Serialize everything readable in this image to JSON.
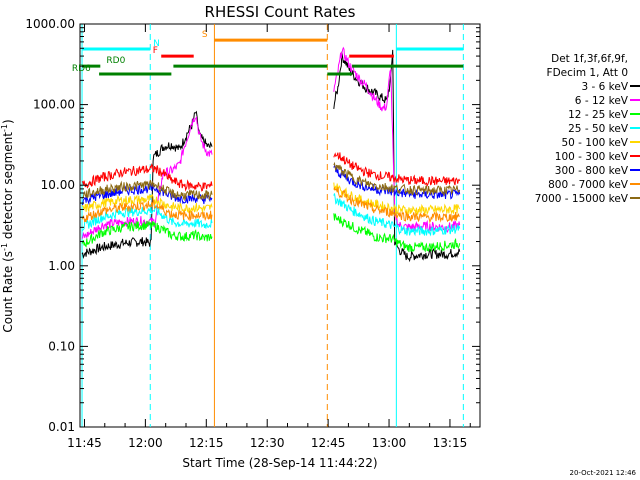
{
  "chart_data": {
    "type": "line",
    "title": "RHESSI Count Rates",
    "xlabel": "Start Time (28-Sep-14 11:44:22)",
    "ylabel": "Count Rate (s",
    "ylabel_sup": "-1",
    "ylabel_tail": " detector segment",
    "ylabel_sup2": "-1",
    "ylabel_close": ")",
    "yscale": "log",
    "xlim_min": [
      -0.5,
      98
    ],
    "ylim": [
      0.01,
      1000
    ],
    "x_ticks": [
      {
        "min": 0.6,
        "label": "11:45"
      },
      {
        "min": 15.6,
        "label": "12:00"
      },
      {
        "min": 30.6,
        "label": "12:15"
      },
      {
        "min": 45.6,
        "label": "12:30"
      },
      {
        "min": 60.6,
        "label": "12:45"
      },
      {
        "min": 75.6,
        "label": "13:00"
      },
      {
        "min": 90.6,
        "label": "13:15"
      }
    ],
    "y_ticks": [
      {
        "value": 0.01,
        "label": "0.01"
      },
      {
        "value": 0.1,
        "label": "0.10"
      },
      {
        "value": 1,
        "label": "1.00"
      },
      {
        "value": 10,
        "label": "10.00"
      },
      {
        "value": 100,
        "label": "100.00"
      },
      {
        "value": 1000,
        "label": "1000.00"
      }
    ],
    "legend_title": [
      "Det 1f,3f,6f,9f,",
      "FDecim 1, Att 0"
    ],
    "legend_position": "right",
    "series": [
      {
        "name": "3 - 6 keV",
        "color": "#000000",
        "seg1": [
          [
            0,
            1.4
          ],
          [
            5,
            1.7
          ],
          [
            10,
            1.9
          ],
          [
            15,
            2.0
          ],
          [
            17,
            1.9
          ],
          [
            17.5,
            22
          ],
          [
            20,
            30
          ],
          [
            22,
            32
          ],
          [
            24,
            28
          ],
          [
            26,
            45
          ],
          [
            27,
            55
          ],
          [
            28,
            80
          ],
          [
            29,
            40
          ],
          [
            30,
            35
          ],
          [
            31,
            30
          ],
          [
            32,
            30
          ]
        ],
        "seg2": [
          [
            62,
            100
          ],
          [
            63,
            160
          ],
          [
            64,
            400
          ],
          [
            65,
            330
          ],
          [
            66,
            260
          ],
          [
            68,
            200
          ],
          [
            70,
            160
          ],
          [
            72,
            140
          ],
          [
            74,
            120
          ],
          [
            75,
            110
          ],
          [
            76,
            200
          ],
          [
            76.5,
            500
          ],
          [
            77,
            2.0
          ],
          [
            78,
            1.6
          ],
          [
            80,
            1.3
          ],
          [
            85,
            1.4
          ],
          [
            90,
            1.4
          ],
          [
            93,
            1.5
          ]
        ]
      },
      {
        "name": "6 - 12 keV",
        "color": "#ff00ff",
        "seg1": [
          [
            0,
            2.2
          ],
          [
            5,
            3.2
          ],
          [
            10,
            3.5
          ],
          [
            15,
            3.6
          ],
          [
            18,
            3.5
          ],
          [
            19,
            8
          ],
          [
            20,
            14
          ],
          [
            22,
            15
          ],
          [
            24,
            18
          ],
          [
            25,
            28
          ],
          [
            26,
            40
          ],
          [
            27,
            60
          ],
          [
            28,
            75
          ],
          [
            29,
            40
          ],
          [
            30,
            30
          ],
          [
            31,
            25
          ],
          [
            32,
            24
          ]
        ],
        "seg2": [
          [
            62,
            150
          ],
          [
            63,
            250
          ],
          [
            64,
            480
          ],
          [
            65,
            380
          ],
          [
            66,
            300
          ],
          [
            68,
            220
          ],
          [
            70,
            170
          ],
          [
            72,
            120
          ],
          [
            74,
            90
          ],
          [
            75,
            95
          ],
          [
            76,
            300
          ],
          [
            77,
            4.5
          ],
          [
            78,
            3.2
          ],
          [
            80,
            3.0
          ],
          [
            85,
            3.1
          ],
          [
            90,
            3.0
          ],
          [
            93,
            3.2
          ]
        ]
      },
      {
        "name": "12 - 25 keV",
        "color": "#00ff00",
        "seg1": [
          [
            0,
            1.8
          ],
          [
            5,
            2.6
          ],
          [
            10,
            3.0
          ],
          [
            15,
            3.2
          ],
          [
            18,
            3.1
          ],
          [
            20,
            2.8
          ],
          [
            22,
            2.4
          ],
          [
            25,
            2.3
          ],
          [
            28,
            2.4
          ],
          [
            30,
            2.2
          ],
          [
            32,
            2.3
          ]
        ],
        "seg2": [
          [
            62,
            4.0
          ],
          [
            64,
            3.6
          ],
          [
            66,
            3.2
          ],
          [
            68,
            2.8
          ],
          [
            70,
            2.6
          ],
          [
            72,
            2.3
          ],
          [
            74,
            2.2
          ],
          [
            76,
            2.2
          ],
          [
            78,
            1.9
          ],
          [
            80,
            1.7
          ],
          [
            85,
            1.7
          ],
          [
            90,
            1.8
          ],
          [
            93,
            1.9
          ]
        ]
      },
      {
        "name": "25 - 50 keV",
        "color": "#00ffff",
        "seg1": [
          [
            0,
            3.0
          ],
          [
            5,
            4.0
          ],
          [
            10,
            4.6
          ],
          [
            15,
            4.8
          ],
          [
            18,
            4.9
          ],
          [
            20,
            4.2
          ],
          [
            22,
            3.5
          ],
          [
            25,
            3.3
          ],
          [
            28,
            3.4
          ],
          [
            30,
            3.2
          ],
          [
            32,
            3.4
          ]
        ],
        "seg2": [
          [
            62,
            7.0
          ],
          [
            64,
            6.0
          ],
          [
            66,
            5.0
          ],
          [
            68,
            4.5
          ],
          [
            70,
            4.0
          ],
          [
            72,
            3.6
          ],
          [
            74,
            3.4
          ],
          [
            76,
            3.2
          ],
          [
            78,
            2.9
          ],
          [
            80,
            2.7
          ],
          [
            85,
            2.7
          ],
          [
            90,
            2.8
          ],
          [
            93,
            2.9
          ]
        ]
      },
      {
        "name": "50 - 100 keV",
        "color": "#ffd700",
        "seg1": [
          [
            0,
            5.0
          ],
          [
            5,
            6.0
          ],
          [
            10,
            6.5
          ],
          [
            15,
            6.6
          ],
          [
            18,
            6.7
          ],
          [
            20,
            6.0
          ],
          [
            22,
            5.4
          ],
          [
            25,
            5.2
          ],
          [
            28,
            5.3
          ],
          [
            30,
            5.1
          ],
          [
            32,
            5.3
          ]
        ],
        "seg2": [
          [
            62,
            10
          ],
          [
            64,
            8.5
          ],
          [
            66,
            7.5
          ],
          [
            68,
            6.8
          ],
          [
            70,
            6.2
          ],
          [
            72,
            5.8
          ],
          [
            74,
            5.5
          ],
          [
            76,
            5.2
          ],
          [
            78,
            5.0
          ],
          [
            80,
            4.9
          ],
          [
            85,
            4.9
          ],
          [
            90,
            5.0
          ],
          [
            93,
            5.1
          ]
        ]
      },
      {
        "name": "100 - 300 keV",
        "color": "#ff0000",
        "seg1": [
          [
            0,
            10
          ],
          [
            5,
            12.5
          ],
          [
            10,
            14.5
          ],
          [
            15,
            15.5
          ],
          [
            18,
            16
          ],
          [
            20,
            14
          ],
          [
            22,
            11.5
          ],
          [
            25,
            10
          ],
          [
            28,
            9.8
          ],
          [
            30,
            9.6
          ],
          [
            32,
            9.8
          ]
        ],
        "seg2": [
          [
            62,
            25
          ],
          [
            64,
            22
          ],
          [
            66,
            18
          ],
          [
            68,
            16
          ],
          [
            70,
            14.5
          ],
          [
            72,
            13.5
          ],
          [
            74,
            13
          ],
          [
            76,
            12.5
          ],
          [
            78,
            12
          ],
          [
            80,
            11.5
          ],
          [
            85,
            11.3
          ],
          [
            90,
            11.2
          ],
          [
            93,
            11.3
          ]
        ]
      },
      {
        "name": "300 - 800 keV",
        "color": "#0000ff",
        "seg1": [
          [
            0,
            6.5
          ],
          [
            5,
            7.5
          ],
          [
            10,
            8.5
          ],
          [
            15,
            9.0
          ],
          [
            18,
            9.2
          ],
          [
            20,
            8.3
          ],
          [
            22,
            7.2
          ],
          [
            25,
            6.8
          ],
          [
            28,
            6.9
          ],
          [
            30,
            6.7
          ],
          [
            32,
            6.9
          ]
        ],
        "seg2": [
          [
            62,
            16
          ],
          [
            64,
            13.5
          ],
          [
            66,
            11.5
          ],
          [
            68,
            10.3
          ],
          [
            70,
            9.5
          ],
          [
            72,
            9.0
          ],
          [
            74,
            8.6
          ],
          [
            76,
            8.4
          ],
          [
            78,
            8.1
          ],
          [
            80,
            7.8
          ],
          [
            85,
            7.6
          ],
          [
            90,
            7.6
          ],
          [
            93,
            7.7
          ]
        ]
      },
      {
        "name": "800 - 7000 keV",
        "color": "#ff8c00",
        "seg1": [
          [
            0,
            3.8
          ],
          [
            5,
            4.8
          ],
          [
            10,
            5.3
          ],
          [
            15,
            5.6
          ],
          [
            18,
            5.7
          ],
          [
            20,
            5.0
          ],
          [
            22,
            4.4
          ],
          [
            25,
            4.2
          ],
          [
            28,
            4.3
          ],
          [
            30,
            4.1
          ],
          [
            32,
            4.3
          ]
        ],
        "seg2": [
          [
            62,
            9
          ],
          [
            64,
            7.8
          ],
          [
            66,
            6.8
          ],
          [
            68,
            6.0
          ],
          [
            70,
            5.5
          ],
          [
            72,
            5.0
          ],
          [
            74,
            4.8
          ],
          [
            76,
            4.6
          ],
          [
            78,
            4.3
          ],
          [
            80,
            4.1
          ],
          [
            85,
            4.0
          ],
          [
            90,
            4.0
          ],
          [
            93,
            4.1
          ]
        ]
      },
      {
        "name": "7000 - 15000 keV",
        "color": "#8b6914",
        "seg1": [
          [
            0,
            7.5
          ],
          [
            5,
            8.7
          ],
          [
            10,
            9.5
          ],
          [
            15,
            10
          ],
          [
            18,
            10.2
          ],
          [
            20,
            9.0
          ],
          [
            22,
            7.8
          ],
          [
            25,
            7.5
          ],
          [
            28,
            7.6
          ],
          [
            30,
            7.4
          ],
          [
            32,
            7.6
          ]
        ],
        "seg2": [
          [
            62,
            18
          ],
          [
            64,
            15
          ],
          [
            66,
            13
          ],
          [
            68,
            11.5
          ],
          [
            70,
            10.5
          ],
          [
            72,
            10
          ],
          [
            74,
            9.6
          ],
          [
            76,
            9.3
          ],
          [
            78,
            9.0
          ],
          [
            80,
            8.8
          ],
          [
            85,
            8.6
          ],
          [
            90,
            8.6
          ],
          [
            93,
            8.7
          ]
        ]
      }
    ],
    "markers": [
      {
        "x": 0.0,
        "color": "#00ffff",
        "dash": false
      },
      {
        "x": 16.8,
        "color": "#00ffff",
        "dash": true
      },
      {
        "x": 32.6,
        "color": "#ff8c00",
        "dash": false
      },
      {
        "x": 60.4,
        "color": "#ff8c00",
        "dash": true
      },
      {
        "x": 77.4,
        "color": "#00ffff",
        "dash": false
      },
      {
        "x": 93.9,
        "color": "#00ffff",
        "dash": true
      }
    ],
    "flags": [
      {
        "label": "N",
        "color": "#00ffff",
        "y": 490,
        "ranges": [
          [
            0,
            16.8
          ],
          [
            77.4,
            93.9
          ]
        ],
        "label_x": 17.5
      },
      {
        "label": "S",
        "color": "#ff8c00",
        "y": 630,
        "ranges": [
          [
            32.6,
            60.4
          ]
        ],
        "label_x": 29.5
      },
      {
        "label": "F",
        "color": "#ff0000",
        "y": 400,
        "ranges": [
          [
            19.5,
            27.5
          ],
          [
            65.8,
            76.8
          ]
        ],
        "label_x": 17.4
      },
      {
        "label": "RD0",
        "color": "#008000",
        "y": 300,
        "ranges": [
          [
            0,
            4.5
          ],
          [
            22.5,
            60.4
          ],
          [
            66.5,
            93.9
          ]
        ],
        "label_x": 6.0
      },
      {
        "label": "RD6",
        "color": "#008000",
        "y": 240,
        "ranges": [
          [
            4.2,
            22.0
          ],
          [
            60.4,
            66.5
          ]
        ],
        "label_x": -2.5
      }
    ],
    "timestamp": "20-Oct-2021 12:46"
  }
}
